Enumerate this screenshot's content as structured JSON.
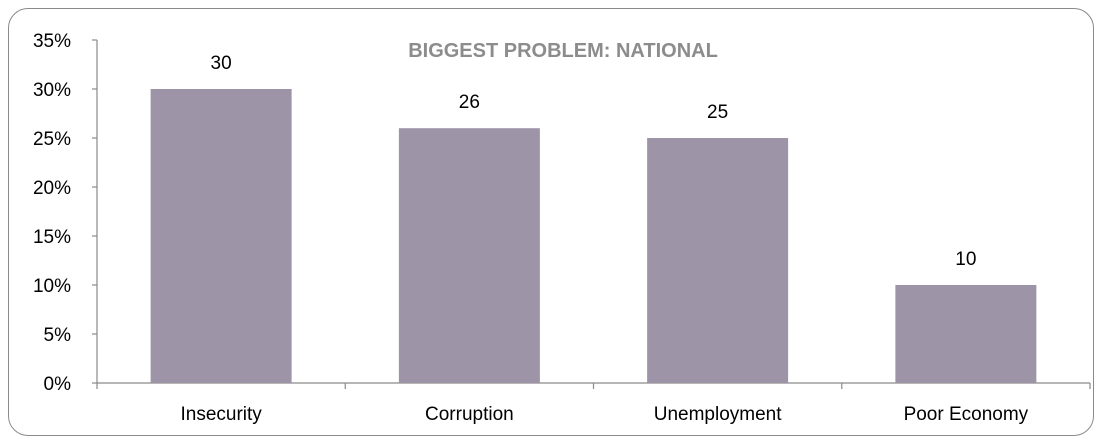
{
  "chart_data": {
    "type": "bar",
    "title": "BIGGEST PROBLEM: NATIONAL",
    "categories": [
      "Insecurity",
      "Corruption",
      "Unemployment",
      "Poor Economy"
    ],
    "values": [
      30,
      26,
      25,
      10
    ],
    "data_labels": [
      "30",
      "26",
      "25",
      "10"
    ],
    "xlabel": "",
    "ylabel": "",
    "ylim": [
      0,
      35
    ],
    "y_ticks": [
      0,
      5,
      10,
      15,
      20,
      25,
      30,
      35
    ],
    "y_tick_labels": [
      "0%",
      "5%",
      "10%",
      "15%",
      "20%",
      "25%",
      "30%",
      "35%"
    ],
    "grid": false,
    "legend": "none",
    "bar_color": "#9e94a8",
    "axis_color": "#8a8a8a",
    "title_color": "#8c8c8c"
  }
}
